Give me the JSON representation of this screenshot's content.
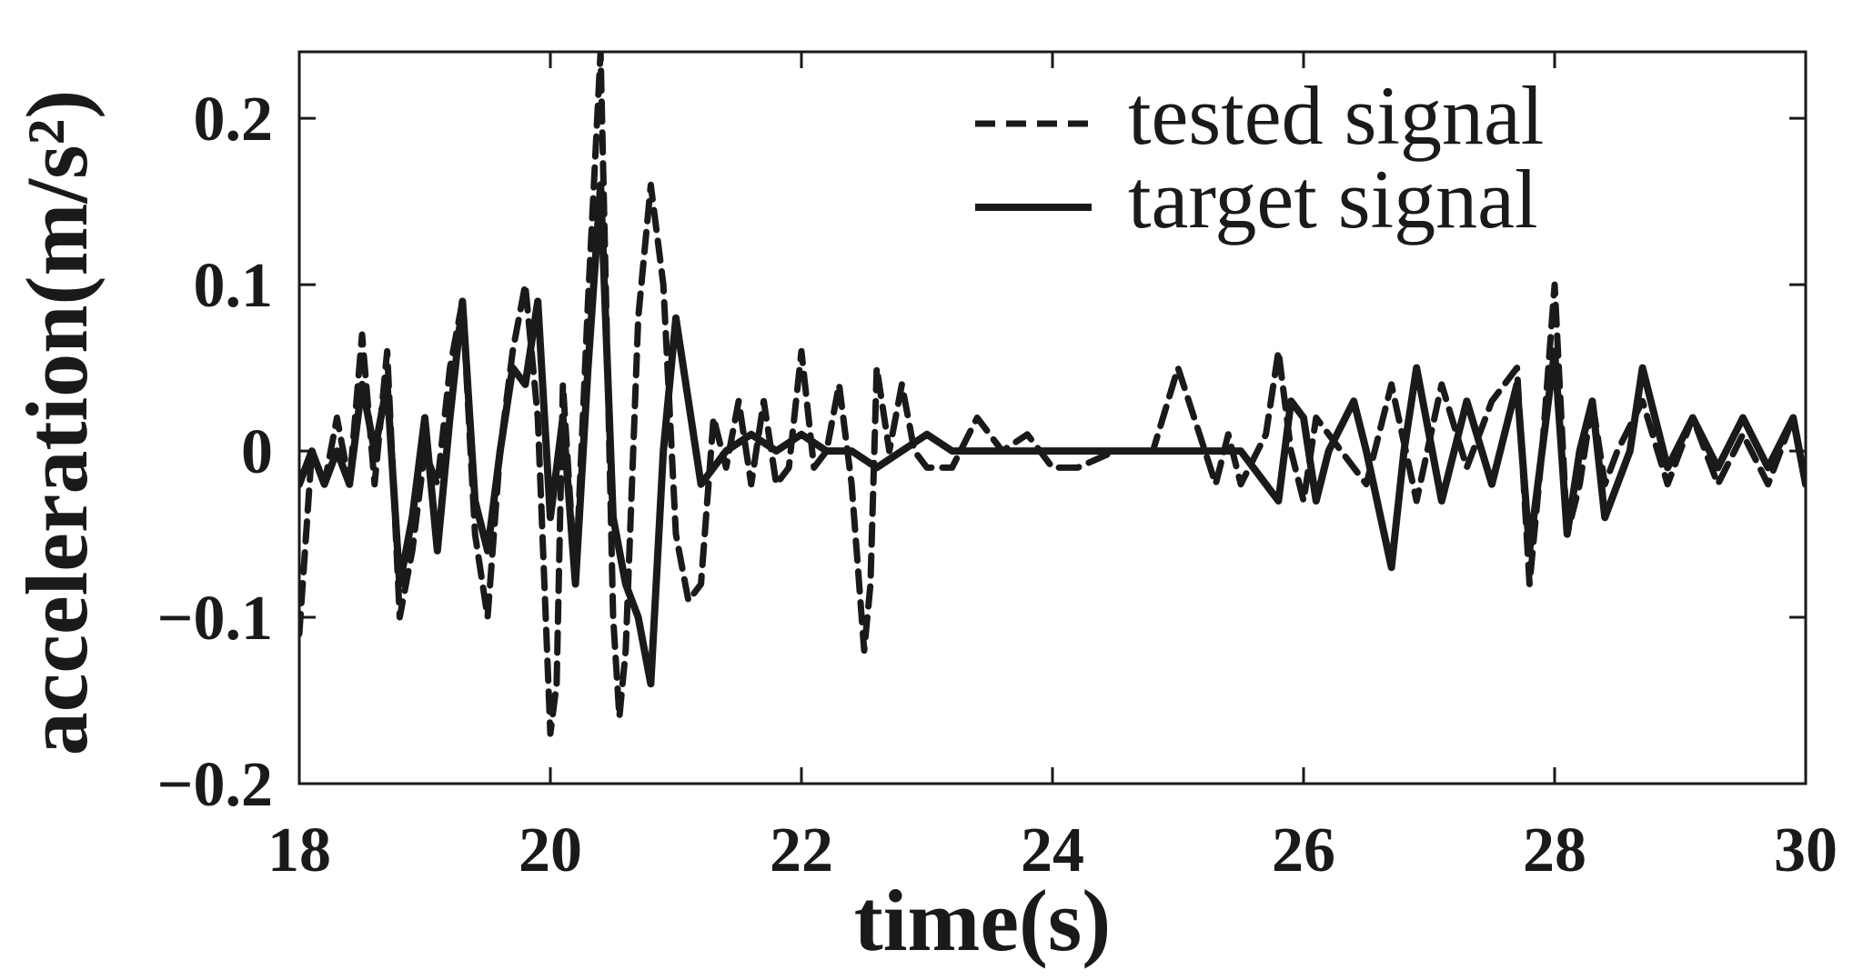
{
  "chart_data": {
    "type": "line",
    "title": "",
    "xlabel": "time(s)",
    "ylabel": "acceleration(m/s²)",
    "xlim": [
      18,
      30
    ],
    "ylim": [
      -0.2,
      0.24
    ],
    "x_ticks": [
      18,
      20,
      22,
      24,
      26,
      28,
      30
    ],
    "x_tick_labels": [
      "18",
      "20",
      "22",
      "24",
      "26",
      "28",
      "30"
    ],
    "y_ticks": [
      -0.2,
      -0.1,
      0,
      0.1,
      0.2
    ],
    "y_tick_labels": [
      "−0.2",
      "−0.1",
      "0",
      "0.1",
      "0.2"
    ],
    "grid": false,
    "legend_position": "top-right",
    "series": [
      {
        "name": "tested signal",
        "style": "dashed",
        "color": "#1a1a1a",
        "x": [
          18.0,
          18.1,
          18.2,
          18.3,
          18.4,
          18.5,
          18.6,
          18.7,
          18.8,
          18.9,
          19.0,
          19.1,
          19.2,
          19.3,
          19.4,
          19.5,
          19.6,
          19.7,
          19.8,
          19.9,
          20.0,
          20.05,
          20.1,
          20.2,
          20.3,
          20.4,
          20.5,
          20.55,
          20.6,
          20.7,
          20.8,
          20.9,
          21.0,
          21.1,
          21.2,
          21.3,
          21.4,
          21.5,
          21.6,
          21.7,
          21.8,
          21.9,
          22.0,
          22.1,
          22.2,
          22.3,
          22.4,
          22.5,
          22.55,
          22.6,
          22.7,
          22.8,
          22.9,
          23.0,
          23.2,
          23.4,
          23.6,
          23.8,
          23.9,
          24.0,
          24.2,
          24.5,
          24.8,
          25.0,
          25.3,
          25.4,
          25.5,
          25.7,
          25.8,
          25.9,
          26.0,
          26.1,
          26.3,
          26.5,
          26.7,
          26.9,
          27.1,
          27.3,
          27.5,
          27.7,
          27.8,
          27.9,
          28.0,
          28.1,
          28.2,
          28.3,
          28.4,
          28.5,
          28.7,
          28.9,
          29.1,
          29.3,
          29.5,
          29.7,
          29.9,
          30.0
        ],
        "values": [
          -0.11,
          0.0,
          -0.02,
          0.02,
          -0.02,
          0.07,
          -0.02,
          0.06,
          -0.1,
          -0.06,
          0.0,
          -0.02,
          0.05,
          0.09,
          -0.05,
          -0.1,
          0.0,
          0.06,
          0.1,
          0.02,
          -0.17,
          -0.14,
          0.04,
          -0.08,
          0.09,
          0.24,
          -0.1,
          -0.16,
          -0.12,
          0.08,
          0.16,
          0.1,
          -0.05,
          -0.09,
          -0.08,
          0.02,
          -0.01,
          0.03,
          -0.02,
          0.03,
          -0.02,
          -0.01,
          0.06,
          -0.01,
          0.0,
          0.04,
          -0.02,
          -0.12,
          -0.08,
          0.05,
          0.0,
          0.04,
          0.0,
          -0.01,
          -0.01,
          0.02,
          0.0,
          0.01,
          0.0,
          -0.01,
          -0.01,
          0.0,
          0.0,
          0.05,
          -0.02,
          0.01,
          -0.02,
          0.01,
          0.06,
          0.0,
          -0.03,
          0.02,
          0.0,
          -0.02,
          0.04,
          -0.03,
          0.04,
          -0.01,
          0.03,
          0.05,
          -0.08,
          0.0,
          0.1,
          -0.05,
          -0.02,
          0.03,
          -0.02,
          0.0,
          0.03,
          -0.02,
          0.02,
          -0.02,
          0.01,
          -0.02,
          0.02,
          -0.02
        ]
      },
      {
        "name": "target signal",
        "style": "solid",
        "color": "#1a1a1a",
        "x": [
          18.0,
          18.1,
          18.2,
          18.3,
          18.4,
          18.5,
          18.6,
          18.7,
          18.8,
          18.9,
          19.0,
          19.1,
          19.2,
          19.3,
          19.4,
          19.5,
          19.6,
          19.7,
          19.8,
          19.9,
          20.0,
          20.1,
          20.2,
          20.3,
          20.4,
          20.5,
          20.6,
          20.7,
          20.8,
          20.9,
          21.0,
          21.1,
          21.2,
          21.4,
          21.6,
          21.8,
          22.0,
          22.2,
          22.4,
          22.6,
          22.8,
          23.0,
          23.2,
          23.4,
          23.6,
          23.8,
          24.0,
          24.5,
          25.0,
          25.5,
          25.8,
          25.9,
          26.0,
          26.1,
          26.2,
          26.4,
          26.5,
          26.7,
          26.8,
          26.9,
          27.1,
          27.3,
          27.5,
          27.7,
          27.8,
          27.9,
          28.0,
          28.1,
          28.2,
          28.3,
          28.4,
          28.6,
          28.7,
          28.9,
          29.1,
          29.3,
          29.5,
          29.7,
          29.9,
          30.0
        ],
        "values": [
          -0.02,
          0.0,
          -0.02,
          0.0,
          -0.02,
          0.04,
          0.0,
          0.04,
          -0.08,
          -0.04,
          0.02,
          -0.06,
          0.02,
          0.09,
          -0.03,
          -0.06,
          0.0,
          0.05,
          0.04,
          0.09,
          -0.04,
          0.02,
          -0.08,
          0.05,
          0.16,
          -0.04,
          -0.08,
          -0.1,
          -0.14,
          0.0,
          0.08,
          0.03,
          -0.02,
          0.0,
          0.01,
          0.0,
          0.01,
          0.0,
          0.0,
          -0.01,
          0.0,
          0.01,
          0.0,
          0.0,
          0.0,
          0.0,
          0.0,
          0.0,
          0.0,
          0.0,
          -0.03,
          0.03,
          0.02,
          -0.03,
          0.0,
          0.03,
          0.0,
          -0.07,
          0.0,
          0.05,
          -0.03,
          0.03,
          -0.02,
          0.04,
          -0.06,
          0.0,
          0.06,
          -0.05,
          0.0,
          0.03,
          -0.04,
          0.0,
          0.05,
          -0.01,
          0.02,
          -0.01,
          0.02,
          -0.01,
          0.02,
          -0.02
        ]
      }
    ]
  }
}
